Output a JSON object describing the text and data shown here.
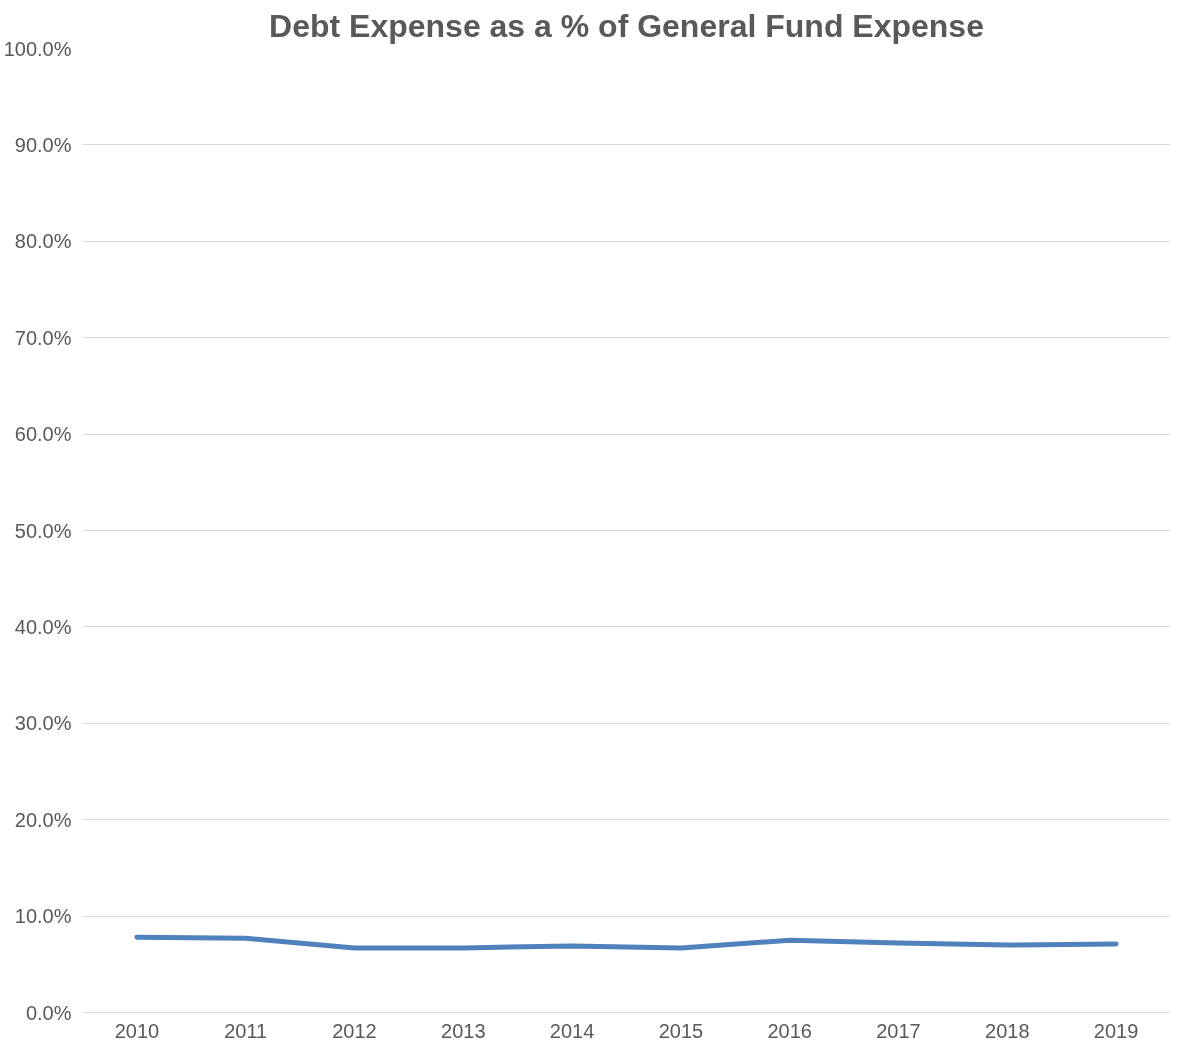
{
  "chart_data": {
    "type": "line",
    "title": "Debt Expense as a % of General Fund Expense",
    "categories": [
      "2010",
      "2011",
      "2012",
      "2013",
      "2014",
      "2015",
      "2016",
      "2017",
      "2018",
      "2019"
    ],
    "series": [
      {
        "color": "#4f81bd",
        "values": [
          7.8,
          7.7,
          6.7,
          6.7,
          6.9,
          6.7,
          7.5,
          7.2,
          7.0,
          7.1
        ]
      }
    ],
    "ylim": [
      0,
      100
    ],
    "yticks": [
      {
        "value": 0,
        "label": "0.0%"
      },
      {
        "value": 10,
        "label": "10.0%"
      },
      {
        "value": 20,
        "label": "20.0%"
      },
      {
        "value": 30,
        "label": "30.0%"
      },
      {
        "value": 40,
        "label": "40.0%"
      },
      {
        "value": 50,
        "label": "50.0%"
      },
      {
        "value": 60,
        "label": "60.0%"
      },
      {
        "value": 70,
        "label": "70.0%"
      },
      {
        "value": 80,
        "label": "80.0%"
      },
      {
        "value": 90,
        "label": "90.0%"
      },
      {
        "value": 100,
        "label": "100.0%"
      }
    ],
    "grid": "y",
    "marker": "none",
    "line_style": "solid"
  }
}
